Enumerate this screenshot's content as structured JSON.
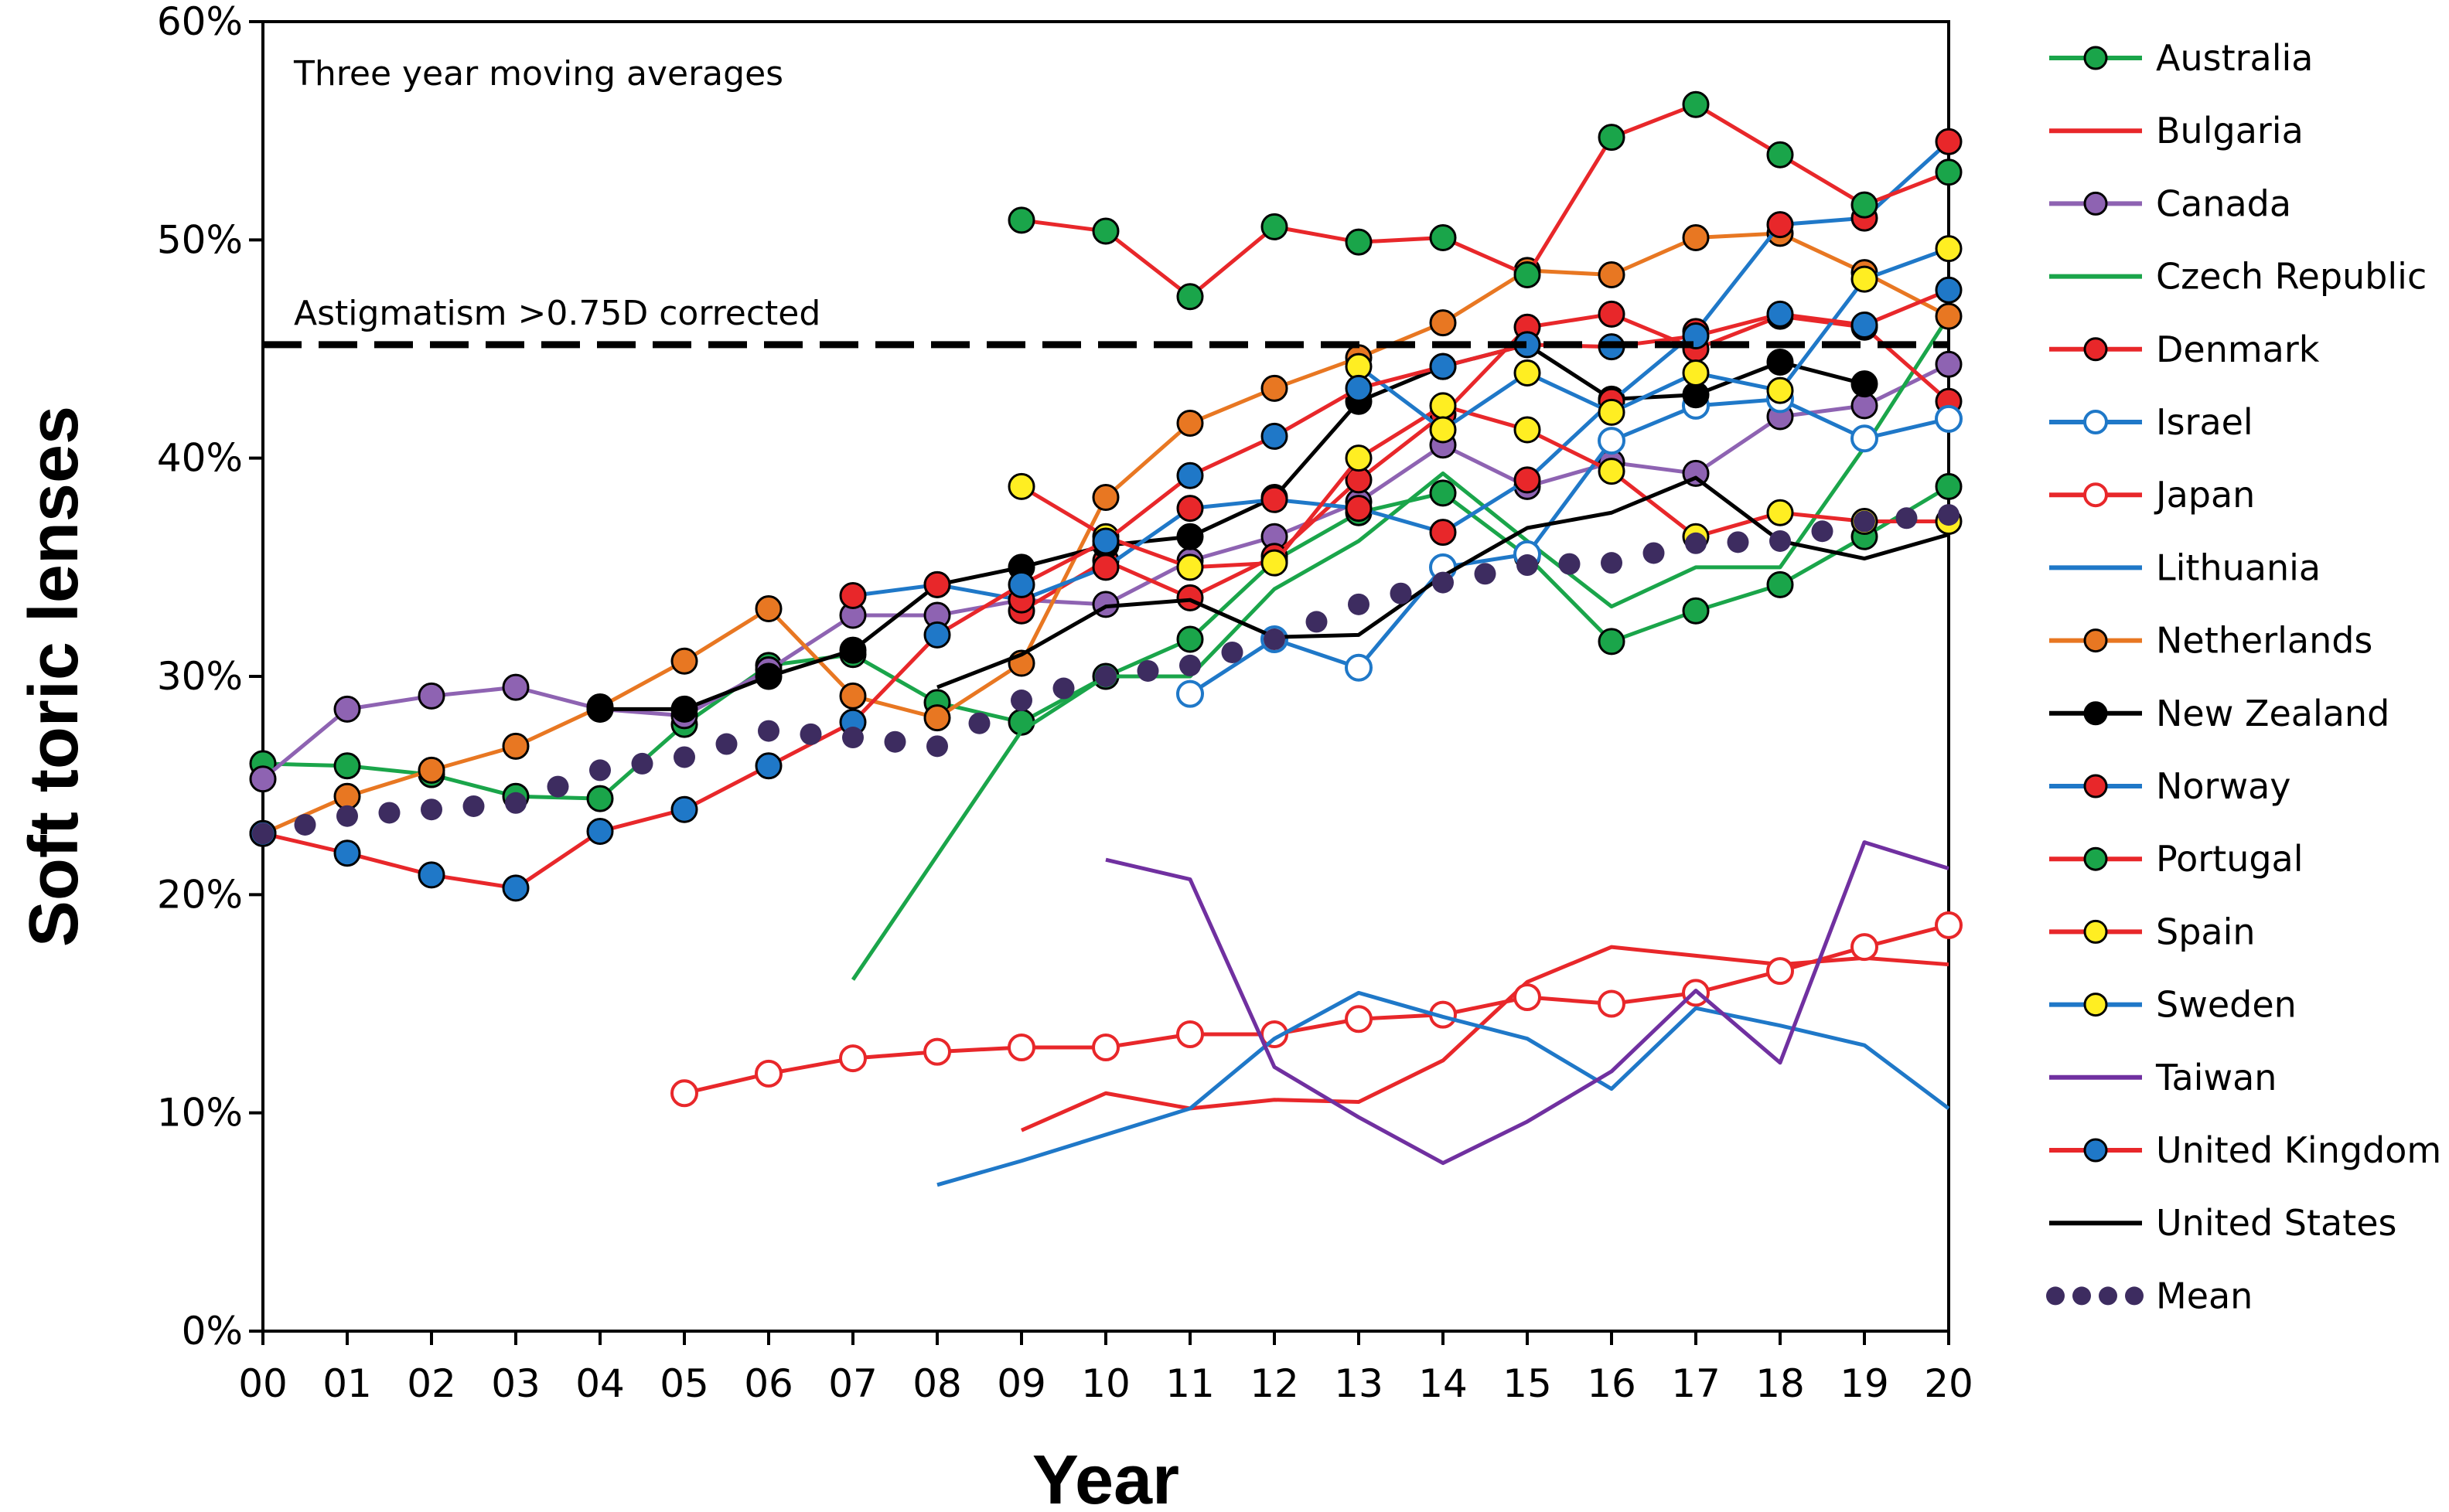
{
  "chart_data": {
    "type": "line",
    "title": "",
    "annotation": "Three year moving averages",
    "reference_line": {
      "label": "Astigmatism >0.75D corrected",
      "value": 45.2
    },
    "xlabel": "Year",
    "ylabel": "Soft toric lenses",
    "ylim": [
      0,
      60
    ],
    "yticks": [
      "0%",
      "10%",
      "20%",
      "30%",
      "40%",
      "50%",
      "60%"
    ],
    "x": [
      "00",
      "01",
      "02",
      "03",
      "04",
      "05",
      "06",
      "07",
      "08",
      "09",
      "10",
      "11",
      "12",
      "13",
      "14",
      "15",
      "16",
      "17",
      "18",
      "19",
      "20"
    ],
    "grid": false,
    "legend_position": "right",
    "series": [
      {
        "name": "Australia",
        "color": "#1aa54a",
        "marker": "filled",
        "marker_fill": "#1aa54a",
        "values": [
          26.0,
          25.9,
          25.5,
          24.5,
          24.4,
          27.8,
          30.5,
          31.0,
          28.8,
          27.9,
          30.0,
          31.7,
          35.3,
          37.5,
          38.4,
          35.5,
          31.6,
          33.0,
          34.2,
          36.4,
          38.7
        ]
      },
      {
        "name": "Bulgaria",
        "color": "#e8272a",
        "marker": "none",
        "values": [
          null,
          null,
          null,
          null,
          null,
          null,
          null,
          null,
          null,
          9.2,
          10.9,
          10.2,
          10.6,
          10.5,
          12.4,
          16.0,
          17.6,
          17.2,
          16.8,
          17.1,
          16.8
        ]
      },
      {
        "name": "Canada",
        "color": "#8e63b2",
        "marker": "filled",
        "marker_fill": "#8e63b2",
        "values": [
          25.3,
          28.5,
          29.1,
          29.5,
          28.5,
          28.2,
          30.3,
          32.8,
          32.8,
          33.5,
          33.3,
          35.3,
          36.4,
          38.0,
          40.6,
          38.7,
          39.8,
          39.3,
          41.9,
          42.4,
          44.3
        ]
      },
      {
        "name": "Czech Republic",
        "color": "#1aa54a",
        "marker": "none",
        "values": [
          null,
          null,
          null,
          null,
          null,
          null,
          null,
          16.1,
          21.8,
          27.5,
          30.0,
          30.0,
          34.0,
          36.2,
          39.3,
          36.2,
          33.2,
          35.0,
          35.0,
          40.5,
          46.5
        ]
      },
      {
        "name": "Denmark",
        "color": "#e8272a",
        "marker": "filled",
        "marker_fill": "#e8272a",
        "values": [
          null,
          null,
          null,
          null,
          null,
          null,
          null,
          null,
          null,
          33.0,
          35.3,
          33.6,
          35.5,
          39.0,
          42.0,
          46.0,
          46.6,
          45.0,
          46.5,
          46.0,
          42.6
        ]
      },
      {
        "name": "Israel",
        "color": "#1f78c8",
        "marker": "open",
        "marker_fill": "#ffffff",
        "values": [
          null,
          null,
          null,
          null,
          null,
          null,
          null,
          null,
          null,
          null,
          null,
          29.2,
          31.7,
          30.4,
          35.0,
          35.6,
          40.8,
          42.4,
          42.7,
          40.9,
          41.8
        ]
      },
      {
        "name": "Japan",
        "color": "#e8272a",
        "marker": "open",
        "marker_fill": "#ffffff",
        "values": [
          null,
          null,
          null,
          null,
          null,
          10.9,
          11.8,
          12.5,
          12.8,
          13.0,
          13.0,
          13.6,
          13.6,
          14.3,
          14.5,
          15.3,
          15.0,
          15.5,
          16.5,
          17.6,
          18.6
        ]
      },
      {
        "name": "Lithuania",
        "color": "#1f78c8",
        "marker": "none",
        "values": [
          null,
          null,
          null,
          null,
          null,
          null,
          null,
          null,
          6.7,
          7.8,
          9.0,
          10.2,
          13.4,
          15.5,
          14.4,
          13.4,
          11.1,
          14.8,
          14.0,
          13.1,
          10.2
        ]
      },
      {
        "name": "Netherlands",
        "color": "#e87722",
        "marker": "filled",
        "marker_fill": "#e87722",
        "values": [
          22.8,
          24.5,
          25.7,
          26.8,
          28.6,
          30.7,
          33.1,
          29.1,
          28.1,
          30.6,
          38.2,
          41.6,
          43.2,
          44.6,
          46.2,
          48.6,
          48.4,
          50.1,
          50.3,
          48.5,
          46.5
        ]
      },
      {
        "name": "New Zealand",
        "color": "#000000",
        "marker": "filled",
        "marker_fill": "#000000",
        "values": [
          null,
          null,
          null,
          null,
          28.5,
          28.5,
          30.0,
          31.2,
          34.2,
          35.0,
          36.0,
          36.4,
          38.2,
          42.6,
          44.2,
          45.2,
          42.7,
          42.9,
          44.4,
          43.4,
          null
        ]
      },
      {
        "name": "Norway",
        "color": "#1f78c8",
        "marker": "filled",
        "marker_fill": "#e8272a",
        "values": [
          null,
          null,
          null,
          null,
          null,
          null,
          null,
          33.7,
          34.2,
          33.5,
          35.0,
          37.7,
          38.1,
          37.7,
          36.6,
          39.0,
          42.6,
          45.8,
          50.7,
          51.0,
          54.5
        ]
      },
      {
        "name": "Portugal",
        "color": "#e8272a",
        "marker": "filled",
        "marker_fill": "#1aa54a",
        "values": [
          null,
          null,
          null,
          null,
          null,
          null,
          null,
          null,
          null,
          50.9,
          50.4,
          47.4,
          50.6,
          49.9,
          50.1,
          48.4,
          54.7,
          56.2,
          53.9,
          51.6,
          53.1
        ]
      },
      {
        "name": "Spain",
        "color": "#e8272a",
        "marker": "filled",
        "marker_fill": "#ffee22",
        "values": [
          null,
          null,
          null,
          null,
          null,
          null,
          null,
          null,
          null,
          38.7,
          36.4,
          35.0,
          35.2,
          40.0,
          42.4,
          41.3,
          39.4,
          36.4,
          37.5,
          37.1,
          37.1
        ]
      },
      {
        "name": "Sweden",
        "color": "#1f78c8",
        "marker": "filled",
        "marker_fill": "#ffee22",
        "values": [
          null,
          null,
          null,
          null,
          null,
          null,
          null,
          null,
          null,
          null,
          null,
          null,
          null,
          44.2,
          41.3,
          43.9,
          42.1,
          43.9,
          43.1,
          48.2,
          49.6
        ]
      },
      {
        "name": "Taiwan",
        "color": "#7030a0",
        "marker": "none",
        "values": [
          null,
          null,
          null,
          null,
          null,
          null,
          null,
          null,
          null,
          null,
          21.6,
          20.7,
          12.1,
          9.8,
          7.7,
          9.6,
          11.9,
          15.6,
          12.3,
          22.4,
          21.2
        ]
      },
      {
        "name": "United Kingdom",
        "color": "#e8272a",
        "marker": "filled",
        "marker_fill": "#1f78c8",
        "values": [
          22.8,
          21.9,
          20.9,
          20.3,
          22.9,
          23.9,
          25.9,
          27.9,
          31.9,
          34.2,
          36.2,
          39.2,
          41.0,
          43.2,
          44.2,
          45.2,
          45.1,
          45.6,
          46.6,
          46.1,
          47.7
        ]
      },
      {
        "name": "United States",
        "color": "#000000",
        "marker": "none",
        "values": [
          null,
          null,
          null,
          null,
          null,
          null,
          null,
          null,
          29.5,
          31.0,
          33.2,
          33.5,
          31.8,
          31.9,
          34.6,
          36.8,
          37.5,
          39.1,
          36.2,
          35.4,
          36.5
        ]
      },
      {
        "name": "Mean",
        "color": "#3d2c60",
        "marker": "dotted",
        "marker_fill": "#3d2c60",
        "values": [
          22.8,
          23.6,
          23.9,
          24.2,
          25.7,
          26.3,
          27.5,
          27.2,
          26.8,
          28.9,
          30.0,
          30.5,
          31.7,
          33.3,
          34.3,
          35.1,
          35.2,
          36.1,
          36.2,
          37.1,
          37.4
        ]
      }
    ]
  }
}
